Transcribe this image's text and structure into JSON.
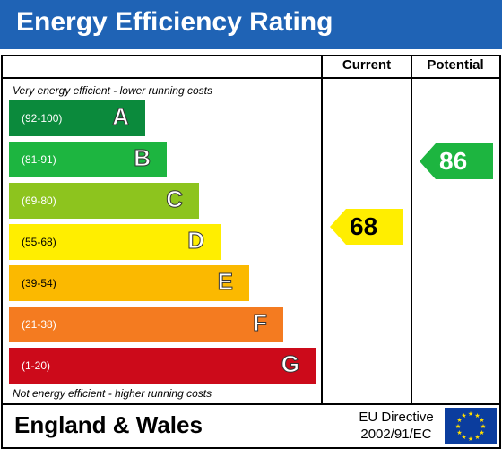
{
  "header": {
    "title": "Energy Efficiency Rating"
  },
  "columns": {
    "current": "Current",
    "potential": "Potential"
  },
  "notes": {
    "top": "Very energy efficient - lower running costs",
    "bottom": "Not energy efficient - higher running costs"
  },
  "bands": [
    {
      "range": "(92-100)",
      "letter": "A",
      "color": "#0b8a3c"
    },
    {
      "range": "(81-91)",
      "letter": "B",
      "color": "#1db540"
    },
    {
      "range": "(69-80)",
      "letter": "C",
      "color": "#8dc41e"
    },
    {
      "range": "(55-68)",
      "letter": "D",
      "color": "#ffee00"
    },
    {
      "range": "(39-54)",
      "letter": "E",
      "color": "#fbb900"
    },
    {
      "range": "(21-38)",
      "letter": "F",
      "color": "#f47b20"
    },
    {
      "range": "(1-20)",
      "letter": "G",
      "color": "#cc0a1a"
    }
  ],
  "ratings": {
    "current": {
      "value": "68",
      "color": "#ffee00"
    },
    "potential": {
      "value": "86",
      "color": "#1db540"
    }
  },
  "footer": {
    "region": "England & Wales",
    "directive_line1": "EU Directive",
    "directive_line2": "2002/91/EC"
  },
  "icons": {
    "flag": "eu-flag-icon"
  }
}
